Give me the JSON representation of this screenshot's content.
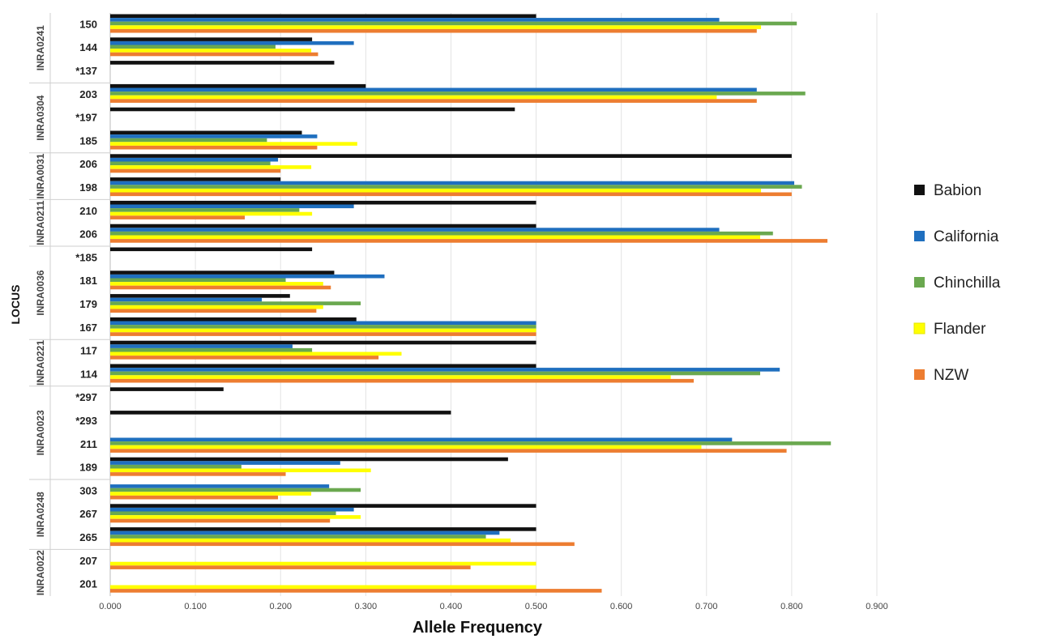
{
  "chart_data": {
    "type": "bar",
    "orientation": "horizontal",
    "xlabel": "Allele Frequency",
    "ylabel": "LOCUS",
    "xlim": [
      0,
      0.9
    ],
    "x_ticks": [
      "0.000",
      "0.100",
      "0.200",
      "0.300",
      "0.400",
      "0.500",
      "0.600",
      "0.700",
      "0.800",
      "0.900"
    ],
    "grid": true,
    "legend_position": "right",
    "series": [
      {
        "name": "Babion",
        "color": "#111111"
      },
      {
        "name": "California",
        "color": "#1F6FBF"
      },
      {
        "name": "Chinchilla",
        "color": "#6AA84F"
      },
      {
        "name": "Flander",
        "color": "#FFFF00"
      },
      {
        "name": "NZW",
        "color": "#ED7D31"
      }
    ],
    "groups": [
      {
        "locus": "INRA0241",
        "alleles": [
          {
            "label": "150",
            "values": [
              0.5,
              0.715,
              0.806,
              0.764,
              0.759
            ]
          },
          {
            "label": "144",
            "values": [
              0.237,
              0.286,
              0.194,
              0.236,
              0.244
            ]
          },
          {
            "label": "*137",
            "values": [
              0.263,
              0,
              0,
              0,
              0
            ]
          }
        ]
      },
      {
        "locus": "INRA0304",
        "alleles": [
          {
            "label": "203",
            "values": [
              0.3,
              0.759,
              0.816,
              0.712,
              0.759
            ]
          },
          {
            "label": "*197",
            "values": [
              0.475,
              0,
              0,
              0,
              0
            ]
          },
          {
            "label": "185",
            "values": [
              0.225,
              0.243,
              0.184,
              0.29,
              0.243
            ]
          }
        ]
      },
      {
        "locus": "INRA0031",
        "alleles": [
          {
            "label": "206",
            "values": [
              0.8,
              0.197,
              0.188,
              0.236,
              0.2
            ]
          },
          {
            "label": "198",
            "values": [
              0.2,
              0.803,
              0.812,
              0.764,
              0.8
            ]
          }
        ]
      },
      {
        "locus": "INRA0211",
        "alleles": [
          {
            "label": "210",
            "values": [
              0.5,
              0.286,
              0.222,
              0.237,
              0.158
            ]
          },
          {
            "label": "206",
            "values": [
              0.5,
              0.715,
              0.778,
              0.763,
              0.842
            ]
          }
        ]
      },
      {
        "locus": "INRA0036",
        "alleles": [
          {
            "label": "*185",
            "values": [
              0.237,
              0,
              0,
              0,
              0
            ]
          },
          {
            "label": "181",
            "values": [
              0.263,
              0.322,
              0.206,
              0.25,
              0.259
            ]
          },
          {
            "label": "179",
            "values": [
              0.211,
              0.178,
              0.294,
              0.25,
              0.242
            ]
          },
          {
            "label": "167",
            "values": [
              0.289,
              0.5,
              0.5,
              0.5,
              0.5
            ]
          }
        ]
      },
      {
        "locus": "INRA0221",
        "alleles": [
          {
            "label": "117",
            "values": [
              0.5,
              0.214,
              0.237,
              0.342,
              0.315
            ]
          },
          {
            "label": "114",
            "values": [
              0.5,
              0.786,
              0.763,
              0.658,
              0.685
            ]
          }
        ]
      },
      {
        "locus": "INRA0023",
        "alleles": [
          {
            "label": "*297",
            "values": [
              0.133,
              0,
              0,
              0,
              0
            ]
          },
          {
            "label": "*293",
            "values": [
              0.4,
              0,
              0,
              0,
              0
            ]
          },
          {
            "label": "211",
            "values": [
              0.0,
              0.73,
              0.846,
              0.694,
              0.794
            ]
          },
          {
            "label": "189",
            "values": [
              0.467,
              0.27,
              0.154,
              0.306,
              0.206
            ]
          }
        ]
      },
      {
        "locus": "INRA0248",
        "alleles": [
          {
            "label": "303",
            "values": [
              0,
              0.257,
              0.294,
              0.236,
              0.197
            ]
          },
          {
            "label": "267",
            "values": [
              0.5,
              0.286,
              0.265,
              0.294,
              0.258
            ]
          },
          {
            "label": "265",
            "values": [
              0.5,
              0.457,
              0.441,
              0.47,
              0.545
            ]
          }
        ]
      },
      {
        "locus": "INRA0022",
        "alleles": [
          {
            "label": "207",
            "values": [
              0,
              0,
              0,
              0.5,
              0.423
            ]
          },
          {
            "label": "201",
            "values": [
              0,
              0,
              0,
              0.5,
              0.577
            ]
          }
        ]
      }
    ]
  }
}
